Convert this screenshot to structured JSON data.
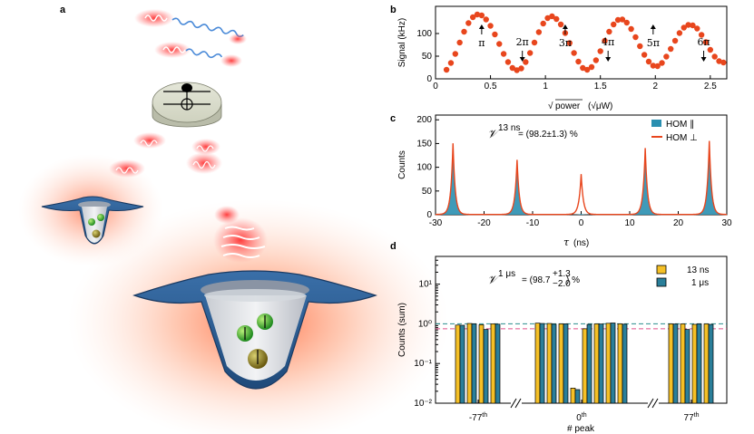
{
  "panels": {
    "a": {
      "label": "a"
    },
    "b": {
      "label": "b"
    },
    "c": {
      "label": "c"
    },
    "d": {
      "label": "d"
    }
  },
  "chart_data": [
    {
      "panel": "b",
      "type": "scatter",
      "xlabel_main": "power",
      "xlabel_unit": "(√μW)",
      "ylabel": "Signal (kHz)",
      "xlim": [
        0,
        2.65
      ],
      "ylim": [
        0,
        160
      ],
      "xticks": [
        "0",
        "0.5",
        "1",
        "1.5",
        "2",
        "2.5"
      ],
      "xtick_values": [
        0,
        0.5,
        1,
        1.5,
        2,
        2.5
      ],
      "yticks": [
        "0",
        "50",
        "100"
      ],
      "ytick_values": [
        0,
        50,
        100
      ],
      "grid": false,
      "color": "#e8461d",
      "x": [
        0.1,
        0.14,
        0.18,
        0.22,
        0.26,
        0.3,
        0.34,
        0.38,
        0.42,
        0.46,
        0.5,
        0.54,
        0.58,
        0.62,
        0.66,
        0.7,
        0.74,
        0.78,
        0.82,
        0.86,
        0.9,
        0.94,
        0.98,
        1.02,
        1.06,
        1.1,
        1.14,
        1.18,
        1.22,
        1.26,
        1.3,
        1.34,
        1.38,
        1.42,
        1.46,
        1.5,
        1.54,
        1.58,
        1.62,
        1.66,
        1.7,
        1.74,
        1.78,
        1.82,
        1.86,
        1.9,
        1.94,
        1.98,
        2.02,
        2.06,
        2.1,
        2.14,
        2.18,
        2.22,
        2.26,
        2.3,
        2.34,
        2.38,
        2.42,
        2.46,
        2.5,
        2.54,
        2.58,
        2.62
      ],
      "y": [
        20,
        35,
        55,
        80,
        104,
        123,
        136,
        142,
        140,
        131,
        117,
        98,
        77,
        55,
        37,
        24,
        19,
        23,
        37,
        57,
        80,
        103,
        122,
        134,
        138,
        132,
        120,
        101,
        79,
        57,
        38,
        24,
        20,
        26,
        41,
        61,
        84,
        104,
        120,
        130,
        131,
        124,
        110,
        92,
        72,
        53,
        38,
        29,
        28,
        35,
        49,
        66,
        84,
        101,
        113,
        119,
        118,
        111,
        97,
        81,
        64,
        49,
        39,
        36
      ],
      "annotations": [
        {
          "text": "π",
          "x": 0.42,
          "dir": "up"
        },
        {
          "text": "2π",
          "x": 0.79,
          "dir": "down"
        },
        {
          "text": "3π",
          "x": 1.18,
          "dir": "up"
        },
        {
          "text": "4π",
          "x": 1.57,
          "dir": "down"
        },
        {
          "text": "5π",
          "x": 1.98,
          "dir": "up"
        },
        {
          "text": "6π",
          "x": 2.44,
          "dir": "down"
        }
      ]
    },
    {
      "panel": "c",
      "type": "line",
      "xlabel_sym": "τ",
      "xlabel_unit": "(ns)",
      "ylabel": "Counts",
      "xlim": [
        -30,
        30
      ],
      "ylim": [
        0,
        210
      ],
      "xticks": [
        "-30",
        "-20",
        "-10",
        "0",
        "10",
        "20",
        "30"
      ],
      "xtick_values": [
        -30,
        -20,
        -10,
        0,
        10,
        20,
        30
      ],
      "yticks": [
        "0",
        "50",
        "100",
        "150",
        "200"
      ],
      "ytick_values": [
        0,
        50,
        100,
        150,
        200
      ],
      "visibility_symbol": "𝒱",
      "visibility_sup": "13 ns",
      "visibility_text": "= (98.2±1.3) %",
      "legend": {
        "placement": "top-right"
      },
      "series": [
        {
          "name": "HOM ∥",
          "color": "#2a8fb0",
          "style": "filled",
          "peaks": [
            {
              "x": -26.4,
              "y": 150
            },
            {
              "x": -13.2,
              "y": 112
            },
            {
              "x": 0,
              "y": 2
            },
            {
              "x": 13.2,
              "y": 140
            },
            {
              "x": 26.4,
              "y": 155
            }
          ]
        },
        {
          "name": "HOM ⊥",
          "color": "#e8461d",
          "style": "line",
          "peaks": [
            {
              "x": -26.4,
              "y": 150
            },
            {
              "x": -13.2,
              "y": 115
            },
            {
              "x": 0,
              "y": 85
            },
            {
              "x": 13.2,
              "y": 140
            },
            {
              "x": 26.4,
              "y": 155
            }
          ]
        }
      ]
    },
    {
      "panel": "d",
      "type": "bar",
      "ylabel": "Counts (sum)",
      "xlabel": "# peak",
      "yscale": "log",
      "ylim": [
        0.01,
        50
      ],
      "yticks": [
        "10⁻²",
        "10⁻¹",
        "10⁰",
        "10¹"
      ],
      "ytick_values": [
        0.01,
        0.1,
        1,
        10
      ],
      "group_labels": [
        "-77",
        "0",
        "77"
      ],
      "group_label_sup": "th",
      "visibility_symbol": "𝒱",
      "visibility_sup": "1 μs",
      "visibility_text": "= (98.7",
      "visibility_up": "+1.3",
      "visibility_down": "−2.0",
      "visibility_suffix": ") %",
      "legend": {
        "placement": "top-right"
      },
      "ref_lines": [
        {
          "y": 1.0,
          "color": "#2a8f8f",
          "style": "dashed"
        },
        {
          "y": 0.75,
          "color": "#e0508a",
          "style": "dashed"
        }
      ],
      "series": [
        {
          "name": "13 ns",
          "color": "#f5c026"
        },
        {
          "name": "1 μs",
          "color": "#2a7f9a"
        }
      ],
      "groups": [
        {
          "values_13ns": [
            0.93,
            1.02,
            0.95,
            1.0
          ],
          "values_1us": [
            0.92,
            1.0,
            0.72,
            0.98
          ]
        },
        {
          "values_13ns": [
            1.04,
            1.02,
            1.0,
            0.024,
            0.75,
            1.0,
            1.03,
            1.0
          ],
          "values_1us": [
            1.02,
            0.98,
            1.0,
            0.022,
            0.97,
            0.99,
            1.05,
            0.98
          ]
        },
        {
          "values_13ns": [
            1.0,
            1.0,
            0.97,
            1.0
          ],
          "values_1us": [
            0.99,
            0.72,
            1.0,
            0.97
          ]
        }
      ]
    }
  ]
}
